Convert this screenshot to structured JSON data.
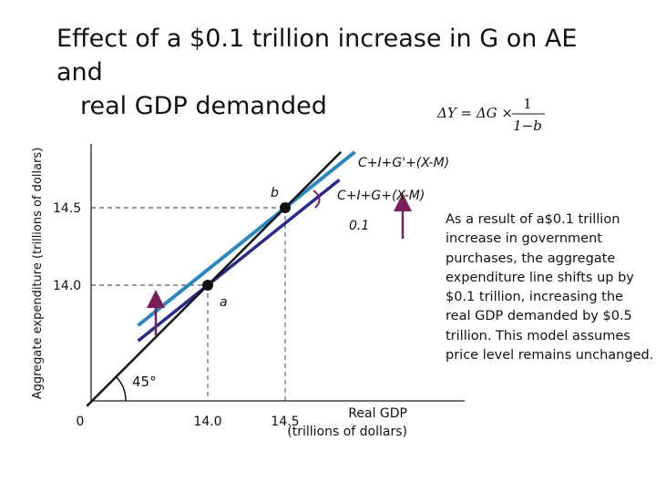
{
  "title": {
    "line1": "Effect of a $0.1 trillion increase in G on AE and",
    "line2": "real GDP demanded"
  },
  "formula": {
    "lhs": "ΔY = ΔG ×",
    "numerator": "1",
    "denominator": "1−b"
  },
  "caption": {
    "lines": [
      "As a result of a$0.1 trillion",
      "increase in government",
      "purchases, the aggregate",
      "expenditure line shifts up by",
      "$0.1 trillion, increasing the",
      "real GDP demanded by $0.5",
      "trillion. This model assumes",
      "price level remains unchanged."
    ]
  },
  "colors": {
    "new_ae_line": "#2a87c1",
    "old_ae_line": "#2a2a8c",
    "line_45": "#111111",
    "arrows": "#7a1f5c",
    "axes": "#222222"
  },
  "chart_data": {
    "type": "line",
    "ylabel": "Aggregate expenditure (trillions of dollars)",
    "xlabel_line1": "Real GDP",
    "xlabel_line2": "(trillions of dollars)",
    "x_ticks": [
      "0",
      "14.0",
      "14.5"
    ],
    "y_ticks": [
      "14.5",
      "14.0"
    ],
    "angle_label": "45°",
    "series": [
      {
        "name": "C+I+G'+(X-M)",
        "label": "C+I+G'+(X-M)",
        "x": [
          14.0,
          14.5
        ],
        "y": [
          14.1,
          14.5
        ]
      },
      {
        "name": "C+I+G+(X-M)",
        "label": "C+I+G+(X-M)",
        "x": [
          14.0,
          14.5
        ],
        "y": [
          14.0,
          14.4
        ]
      },
      {
        "name": "45-degree line",
        "label": "",
        "x": [
          14.0,
          14.5
        ],
        "y": [
          14.0,
          14.5
        ]
      }
    ],
    "points": [
      {
        "name": "a",
        "x": 14.0,
        "y": 14.0
      },
      {
        "name": "b",
        "x": 14.5,
        "y": 14.5
      }
    ],
    "shift_label": "0.1"
  }
}
